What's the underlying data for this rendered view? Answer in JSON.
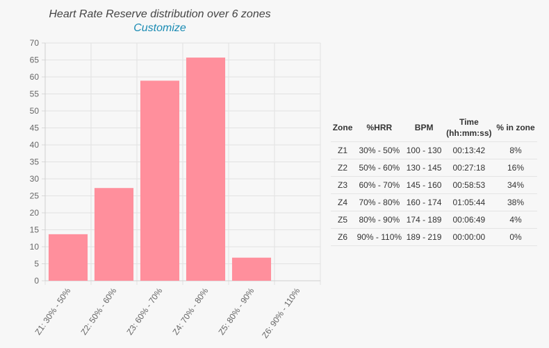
{
  "chart_title": "Heart Rate Reserve distribution over 6 zones",
  "customize_label": "Customize",
  "chart_data": {
    "type": "bar",
    "categories": [
      "Z1: 30% - 50%",
      "Z2: 50% - 60%",
      "Z3: 60% - 70%",
      "Z4: 70% - 80%",
      "Z5: 80% - 90%",
      "Z6: 90% - 110%"
    ],
    "values": [
      13.7,
      27.3,
      58.9,
      65.7,
      6.8,
      0
    ],
    "ylim": [
      0,
      70
    ],
    "yticks": [
      0,
      5,
      10,
      15,
      20,
      25,
      30,
      35,
      40,
      45,
      50,
      55,
      60,
      65,
      70
    ],
    "grid": true,
    "bar_color": "#ff8f9c"
  },
  "table": {
    "headers": [
      "Zone",
      "%HRR",
      "BPM",
      "Time\n(hh:mm:ss)",
      "% in zone"
    ],
    "rows": [
      [
        "Z1",
        "30% - 50%",
        "100 - 130",
        "00:13:42",
        "8%"
      ],
      [
        "Z2",
        "50% - 60%",
        "130 - 145",
        "00:27:18",
        "16%"
      ],
      [
        "Z3",
        "60% - 70%",
        "145 - 160",
        "00:58:53",
        "34%"
      ],
      [
        "Z4",
        "70% - 80%",
        "160 - 174",
        "01:05:44",
        "38%"
      ],
      [
        "Z5",
        "80% - 90%",
        "174 - 189",
        "00:06:49",
        "4%"
      ],
      [
        "Z6",
        "90% - 110%",
        "189 - 219",
        "00:00:00",
        "0%"
      ]
    ]
  }
}
